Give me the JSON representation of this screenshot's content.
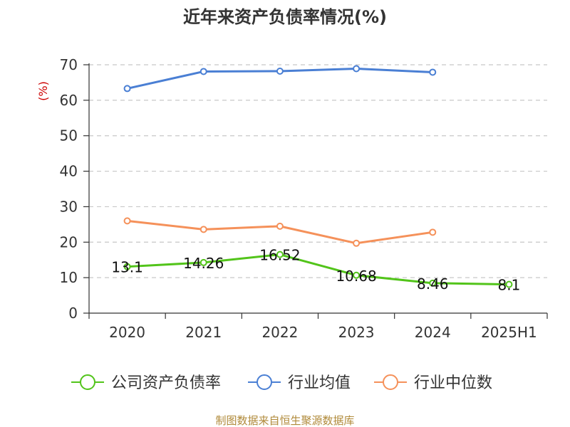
{
  "chart_data": {
    "type": "line",
    "title": "近年来资产负债率情况(%)",
    "ylabel": "(%)",
    "xlabel": "",
    "categories": [
      "2020",
      "2021",
      "2022",
      "2023",
      "2024",
      "2025H1"
    ],
    "ylim": [
      0,
      70
    ],
    "yticks": [
      0,
      10,
      20,
      30,
      40,
      50,
      60,
      70
    ],
    "grid": true,
    "legend_position": "bottom",
    "series": [
      {
        "name": "公司资产负债率",
        "color": "#52c41a",
        "values": [
          13.1,
          14.26,
          16.52,
          10.68,
          8.46,
          8.1
        ],
        "labels": [
          "13.1",
          "14.26",
          "16.52",
          "10.68",
          "8.46",
          "8.1"
        ]
      },
      {
        "name": "行业均值",
        "color": "#4a7fd4",
        "values": [
          63.3,
          68.1,
          68.2,
          68.9,
          67.9,
          null
        ]
      },
      {
        "name": "行业中位数",
        "color": "#f5915a",
        "values": [
          26.0,
          23.6,
          24.5,
          19.7,
          22.8,
          null
        ]
      }
    ],
    "source": "制图数据来自恒生聚源数据库"
  }
}
